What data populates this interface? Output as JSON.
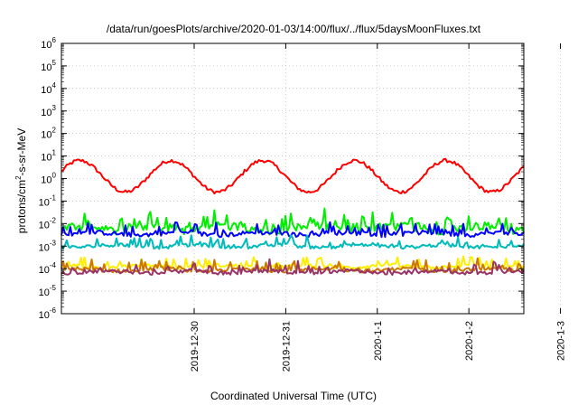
{
  "chart_data": {
    "type": "line",
    "title": "/data/run/goesPlots/archive/2020-01-03/14:00/flux/../flux/5daysMoonFluxes.txt",
    "xlabel": "Coordinated Universal Time (UTC)",
    "ylabel_parts": {
      "a": "protons/cm",
      "sup": "2",
      "b": "-s-sr-MeV"
    },
    "y_scale": "log",
    "ylim": [
      1e-06,
      1000000.0
    ],
    "y_tick_exponents": [
      -6,
      -5,
      -4,
      -3,
      -2,
      -1,
      0,
      1,
      2,
      3,
      4,
      5,
      6
    ],
    "y_tick_base": "10",
    "x_range_days": [
      -1.45,
      3.6
    ],
    "x_ticks": [
      {
        "label": "2019-12-30",
        "day": 0
      },
      {
        "label": "2019-12-31",
        "day": 1
      },
      {
        "label": "2020-1-1",
        "day": 2
      },
      {
        "label": "2020-1-2",
        "day": 3
      },
      {
        "label": "2020-1-3",
        "day": 4
      }
    ],
    "grid": true,
    "legend": "none",
    "series": [
      {
        "color": "#ff0000",
        "center_log": 0.1,
        "amp": 0.7,
        "period": 1.0,
        "phase": -0.5,
        "noise": 0.08,
        "spike": 0.0,
        "dip": true
      },
      {
        "color": "#00ee00",
        "center_log": -2.2,
        "amp": 0.1,
        "period": 0.9,
        "phase": 0.2,
        "noise": 0.2,
        "spike": 0.65,
        "dip": false
      },
      {
        "color": "#0000ff",
        "center_log": -2.45,
        "amp": 0.05,
        "period": 0.9,
        "phase": 0.5,
        "noise": 0.1,
        "spike": 0.5,
        "dip": false
      },
      {
        "color": "#00bbbb",
        "center_log": -3.0,
        "amp": 0.05,
        "period": 0.9,
        "phase": 0.7,
        "noise": 0.08,
        "spike": 0.45,
        "dip": false
      },
      {
        "color": "#ffee00",
        "center_log": -3.9,
        "amp": 0.05,
        "period": 0.9,
        "phase": 0.1,
        "noise": 0.08,
        "spike": 0.4,
        "dip": false
      },
      {
        "color": "#cc7700",
        "center_log": -4.05,
        "amp": 0.05,
        "period": 0.9,
        "phase": 0.3,
        "noise": 0.08,
        "spike": 0.45,
        "dip": false
      },
      {
        "color": "#993366",
        "center_log": -4.15,
        "amp": 0.05,
        "period": 0.9,
        "phase": 0.6,
        "noise": 0.08,
        "spike": 0.45,
        "dip": false
      }
    ]
  }
}
